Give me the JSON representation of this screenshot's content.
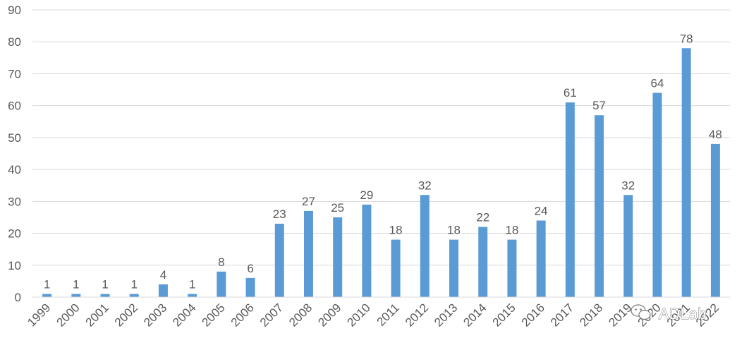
{
  "chart_data": {
    "type": "bar",
    "categories": [
      "1999",
      "2000",
      "2001",
      "2002",
      "2003",
      "2004",
      "2005",
      "2006",
      "2007",
      "2008",
      "2009",
      "2010",
      "2011",
      "2012",
      "2013",
      "2014",
      "2015",
      "2016",
      "2017",
      "2018",
      "2019",
      "2020",
      "2021",
      "2022"
    ],
    "values": [
      1,
      1,
      1,
      1,
      4,
      1,
      8,
      6,
      23,
      27,
      25,
      29,
      18,
      32,
      18,
      22,
      18,
      24,
      61,
      57,
      32,
      64,
      78,
      48
    ],
    "ylim": [
      0,
      90
    ],
    "yticks": [
      0,
      10,
      20,
      30,
      40,
      50,
      60,
      70,
      80,
      90
    ],
    "grid": true,
    "bar_color": "#5b9bd5",
    "title": "",
    "xlabel": "",
    "ylabel": ""
  },
  "watermark": {
    "text": "ADLab",
    "icon": "wechat-icon"
  }
}
